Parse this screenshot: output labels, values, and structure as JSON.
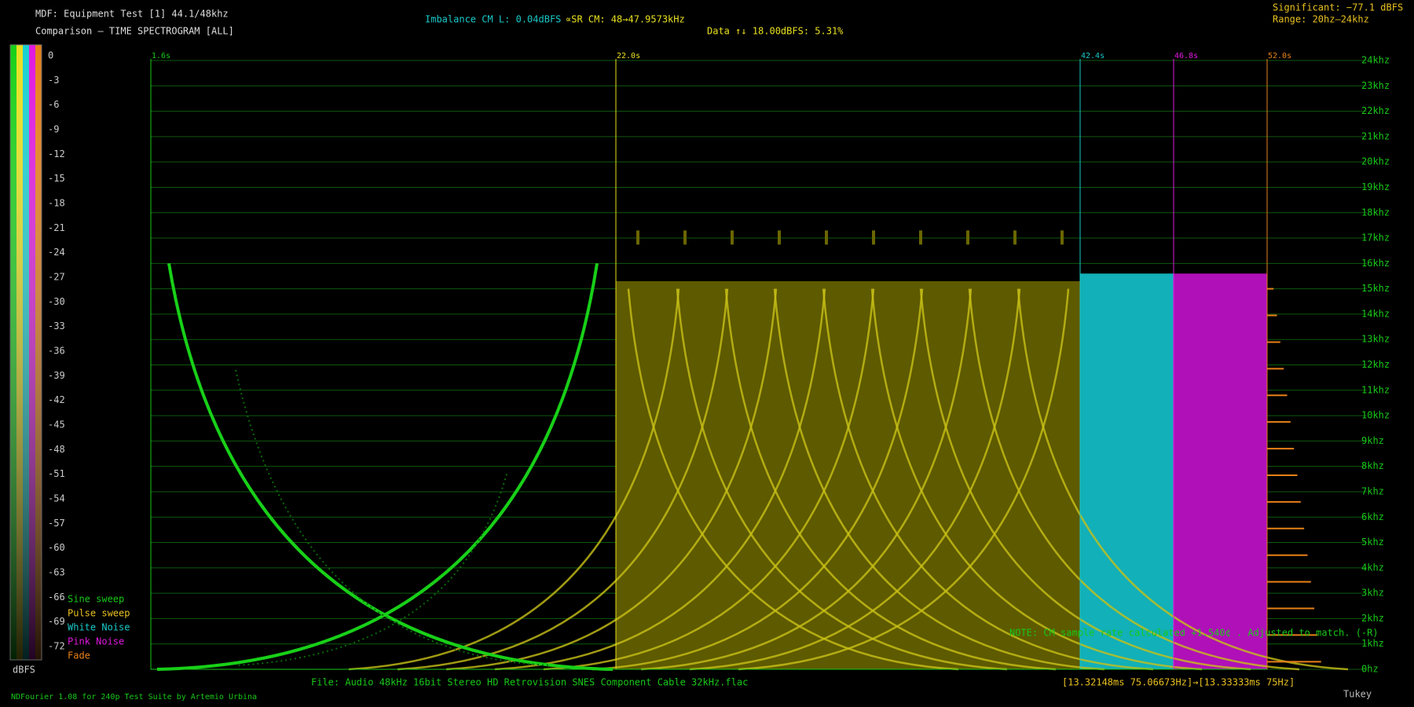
{
  "header": {
    "title": "MDF: Equipment Test [1] 44.1/48khz",
    "subtitle": "Comparison — TIME SPECTROGRAM [ALL]",
    "imbalance": "Imbalance CM L: 0.04dBFS",
    "sample_rate": "∝SR CM: 48→47.9573kHz",
    "data_info": "Data ↑↓ 18.00dBFS: 5.31%",
    "significant": "Significant: −77.1 dBFS",
    "range": "Range: 20hz–24khz"
  },
  "scale": {
    "labels": [
      "0",
      "-3",
      "-6",
      "-9",
      "-12",
      "-15",
      "-18",
      "-21",
      "-24",
      "-27",
      "-30",
      "-33",
      "-36",
      "-39",
      "-42",
      "-45",
      "-48",
      "-51",
      "-54",
      "-57",
      "-60",
      "-63",
      "-66",
      "-69",
      "-72"
    ],
    "unit": "dBFS"
  },
  "legend": [
    "Sine sweep",
    "Pulse sweep",
    "White Noise",
    "Pink Noise",
    "Fade"
  ],
  "time_markers": [
    "1.6s",
    "22.0s",
    "42.4s",
    "46.8s",
    "52.0s"
  ],
  "frequency_labels": [
    "24khz",
    "23khz",
    "22khz",
    "21khz",
    "20khz",
    "19khz",
    "18khz",
    "17khz",
    "16khz",
    "15khz",
    "14khz",
    "13khz",
    "12khz",
    "11khz",
    "10khz",
    "9khz",
    "8khz",
    "7khz",
    "6khz",
    "5khz",
    "4khz",
    "3khz",
    "2khz",
    "1khz",
    "0hz"
  ],
  "note": "NOTE: CM sample rate calculated +1.540¢ . Adjusted to match. (-R)",
  "footer": {
    "file": "File: Audio   48kHz 16bit Stereo HD Retrovision SNES Component Cable 32kHz.flac",
    "timing": "[13.32148ms 75.06673Hz]→[13.33333ms 75Hz]",
    "credit": "NDFourier 1.08 for 240p Test Suite by Artemio Urbina",
    "window": "Tukey"
  }
}
